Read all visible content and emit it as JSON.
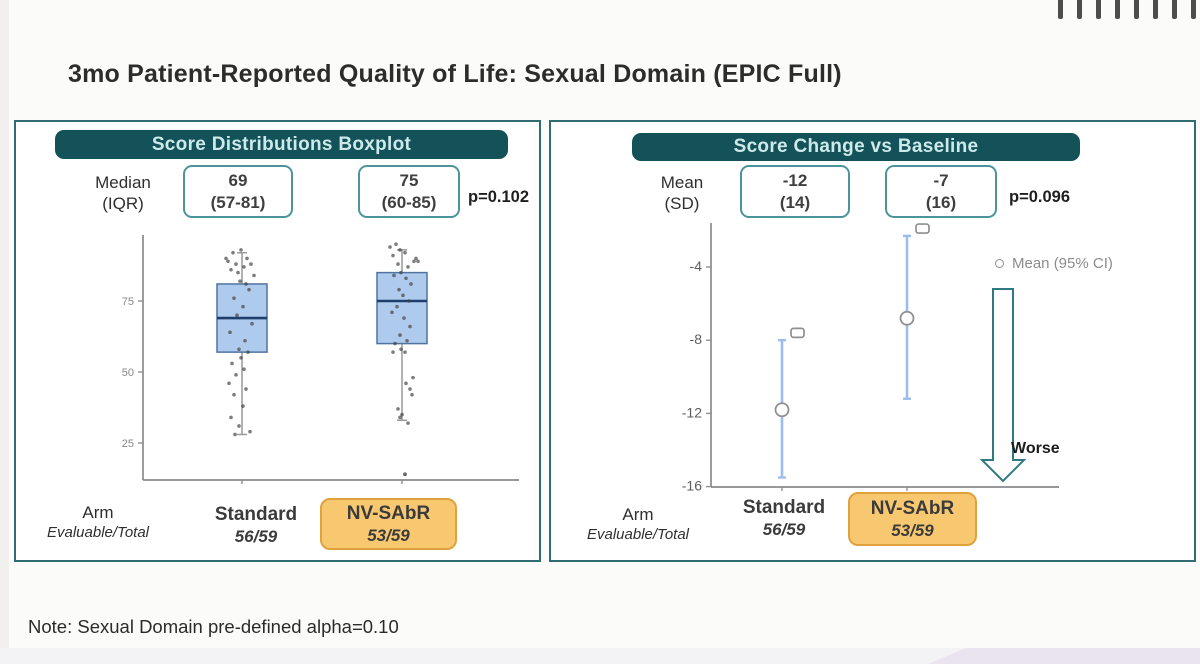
{
  "title": "3mo Patient-Reported Quality of Life: Sexual Domain (EPIC Full)",
  "note": "Note: Sexual Domain pre-defined alpha=0.10",
  "decor": {
    "top_tick_count": 8
  },
  "colors": {
    "teal_dark": "#14525a",
    "teal_border": "#2f6d72",
    "stat_box_border": "#4b949b",
    "header_text": "#cde9ea",
    "orange_fill": "#f8c871",
    "orange_border": "#dfa23c",
    "box_fill": "#aecaec",
    "box_stroke": "#50749f",
    "median_line": "#1e3e6b",
    "whisker": "#999999",
    "jitter_dot": "#404040",
    "axis": "#8a8a8a",
    "error_bar": "#9dbdee",
    "marker_stroke": "#8f8f8f",
    "legend_text": "#8c8c8c",
    "arrow_outline": "#2e7a80",
    "lavender": "#e9e4f0"
  },
  "left_panel": {
    "header": "Score Distributions Boxplot",
    "stat_label_line1": "Median",
    "stat_label_line2": "(IQR)",
    "stats": [
      {
        "value": "69",
        "range": "(57-81)"
      },
      {
        "value": "75",
        "range": "(60-85)"
      }
    ],
    "p_value": "p=0.102",
    "arm_label": "Arm",
    "arm_sublabel": "Evaluable/Total",
    "arms": [
      {
        "name": "Standard",
        "evaluable": "56/59",
        "highlight": false
      },
      {
        "name": "NV-SAbR",
        "evaluable": "53/59",
        "highlight": true
      }
    ]
  },
  "right_panel": {
    "header": "Score Change vs Baseline",
    "stat_label_line1": "Mean",
    "stat_label_line2": "(SD)",
    "stats": [
      {
        "value": "-12",
        "range": "(14)"
      },
      {
        "value": "-7",
        "range": "(16)"
      }
    ],
    "p_value": "p=0.096",
    "legend_label": "Mean (95% CI)",
    "worse_label": "Worse",
    "arm_label": "Arm",
    "arm_sublabel": "Evaluable/Total",
    "arms": [
      {
        "name": "Standard",
        "evaluable": "56/59",
        "highlight": false
      },
      {
        "name": "NV-SAbR",
        "evaluable": "53/59",
        "highlight": true
      }
    ]
  },
  "chart_data": [
    {
      "type": "boxplot",
      "title": "Score Distributions Boxplot",
      "categories": [
        "Standard",
        "NV-SAbR"
      ],
      "yticks": [
        25,
        50,
        75
      ],
      "ylim": [
        5,
        100
      ],
      "grid": false,
      "p_value": 0.102,
      "series": [
        {
          "name": "Standard",
          "median": 69,
          "q1": 57,
          "q3": 81,
          "whisker_low": 28,
          "whisker_high": 92,
          "outliers": [],
          "points": [
            [
              -9,
              92
            ],
            [
              -1,
              93
            ],
            [
              5,
              90
            ],
            [
              -14,
              89
            ],
            [
              -6,
              88
            ],
            [
              2,
              87
            ],
            [
              9,
              88
            ],
            [
              -11,
              86
            ],
            [
              -4,
              85
            ],
            [
              12,
              84
            ],
            [
              -2,
              82
            ],
            [
              4,
              81
            ],
            [
              -16,
              90
            ],
            [
              7,
              79
            ],
            [
              -8,
              76
            ],
            [
              1,
              73
            ],
            [
              -5,
              70
            ],
            [
              10,
              67
            ],
            [
              -12,
              64
            ],
            [
              3,
              61
            ],
            [
              -3,
              58
            ],
            [
              6,
              57
            ],
            [
              -1,
              55
            ],
            [
              -10,
              53
            ],
            [
              2,
              51
            ],
            [
              -6,
              49
            ],
            [
              -13,
              46
            ],
            [
              4,
              44
            ],
            [
              -8,
              42
            ],
            [
              1,
              38
            ],
            [
              -11,
              34
            ],
            [
              -3,
              31
            ],
            [
              8,
              29
            ],
            [
              -7,
              28
            ]
          ]
        },
        {
          "name": "NV-SAbR",
          "median": 75,
          "q1": 60,
          "q3": 85,
          "whisker_low": 33,
          "whisker_high": 93,
          "outliers": [
            14
          ],
          "points": [
            [
              -6,
              95
            ],
            [
              -12,
              94
            ],
            [
              -2,
              93
            ],
            [
              3,
              92
            ],
            [
              -9,
              91
            ],
            [
              14,
              90
            ],
            [
              16,
              89
            ],
            [
              12,
              89
            ],
            [
              -4,
              88
            ],
            [
              6,
              87
            ],
            [
              -1,
              85
            ],
            [
              -8,
              84
            ],
            [
              4,
              83
            ],
            [
              9,
              81
            ],
            [
              -3,
              79
            ],
            [
              1,
              77
            ],
            [
              7,
              75
            ],
            [
              -5,
              73
            ],
            [
              -10,
              71
            ],
            [
              2,
              69
            ],
            [
              8,
              66
            ],
            [
              -2,
              63
            ],
            [
              5,
              61
            ],
            [
              -7,
              60
            ],
            [
              -1,
              58
            ],
            [
              3,
              57
            ],
            [
              -9,
              57
            ],
            [
              11,
              48
            ],
            [
              4,
              46
            ],
            [
              8,
              44
            ],
            [
              10,
              42
            ],
            [
              -4,
              37
            ],
            [
              0,
              35
            ],
            [
              -2,
              34
            ],
            [
              6,
              32
            ]
          ]
        }
      ]
    },
    {
      "type": "errorbar",
      "title": "Score Change vs Baseline",
      "categories": [
        "Standard",
        "NV-SAbR"
      ],
      "yticks": [
        -4,
        -8,
        -12,
        -16
      ],
      "ylim": [
        -16.5,
        -1
      ],
      "grid": false,
      "legend": [
        "Mean (95% CI)"
      ],
      "legend_position": "right",
      "p_value": 0.096,
      "annotation": "Worse (downward arrow)",
      "series": [
        {
          "name": "Standard",
          "mean": -11.8,
          "ci_low": -15.5,
          "ci_high": -8.0,
          "square_marker": -7.6
        },
        {
          "name": "NV-SAbR",
          "mean": -6.8,
          "ci_low": -11.2,
          "ci_high": -2.3,
          "square_marker": -1.9
        }
      ]
    }
  ]
}
